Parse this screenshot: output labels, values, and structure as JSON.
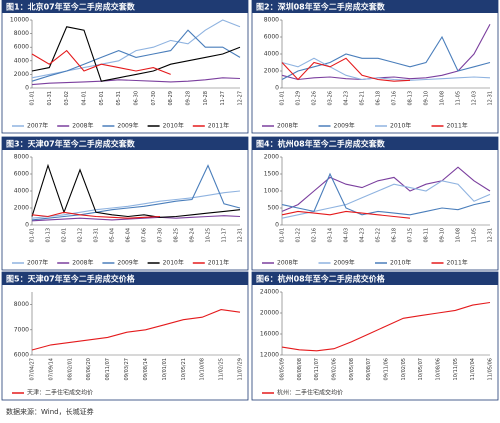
{
  "chart_data": [
    {
      "type": "line",
      "title": "图1：北京07年至今二手房成交套数",
      "categories": [
        "01-01",
        "01-31",
        "03-02",
        "04-01",
        "05-01",
        "05-31",
        "06-30",
        "07-30",
        "08-29",
        "09-28",
        "10-28",
        "11-27",
        "12-27"
      ],
      "ylim": [
        0,
        10000
      ],
      "yticks": [
        0,
        2000,
        4000,
        6000,
        8000,
        10000
      ],
      "grid": false,
      "series": [
        {
          "name": "2007年",
          "color": "#8fb3e0",
          "values": [
            1500,
            2000,
            2500,
            3000,
            3500,
            4000,
            5500,
            6000,
            7000,
            6500,
            8500,
            10000,
            9000
          ]
        },
        {
          "name": "2008年",
          "color": "#7b3f9e",
          "values": [
            500,
            700,
            800,
            900,
            1000,
            1200,
            1100,
            1000,
            900,
            1000,
            1200,
            1500,
            1400
          ]
        },
        {
          "name": "2009年",
          "color": "#4a7ebb",
          "values": [
            1000,
            1800,
            2500,
            3500,
            4500,
            5500,
            4500,
            5000,
            5500,
            8500,
            6000,
            6000,
            4500
          ]
        },
        {
          "name": "2010年",
          "color": "#000000",
          "values": [
            2500,
            3000,
            9000,
            8500,
            1000,
            1500,
            2000,
            2500,
            3500,
            4000,
            4500,
            5000,
            6000
          ]
        },
        {
          "name": "2011年",
          "color": "#e41a1c",
          "values": [
            5000,
            3500,
            5500,
            2500,
            3500,
            3000,
            2500,
            3000,
            2000,
            null,
            null,
            null,
            null
          ]
        }
      ]
    },
    {
      "type": "line",
      "title": "图2：深圳08年至今二手房成交套数",
      "categories": [
        "01-01",
        "01-29",
        "02-26",
        "03-26",
        "04-23",
        "05-21",
        "06-18",
        "07-16",
        "08-13",
        "09-10",
        "10-08",
        "11-05",
        "12-03",
        "12-31"
      ],
      "ylim": [
        0,
        8000
      ],
      "yticks": [
        0,
        2000,
        4000,
        6000,
        8000
      ],
      "grid": false,
      "series": [
        {
          "name": "2008年",
          "color": "#7b3f9e",
          "values": [
            1500,
            1000,
            1200,
            1300,
            1100,
            1000,
            1200,
            1300,
            1100,
            1200,
            1500,
            2000,
            4000,
            7500
          ]
        },
        {
          "name": "2009年",
          "color": "#4a7ebb",
          "values": [
            1000,
            2000,
            2500,
            3000,
            4000,
            3500,
            3500,
            3000,
            2500,
            3000,
            6000,
            2000,
            2500,
            3000
          ]
        },
        {
          "name": "2010年",
          "color": "#8fb3e0",
          "values": [
            3000,
            2500,
            3500,
            2500,
            1500,
            1000,
            1200,
            1000,
            900,
            1000,
            1100,
            1200,
            1300,
            1200
          ]
        },
        {
          "name": "2011年",
          "color": "#e41a1c",
          "values": [
            3000,
            1000,
            3000,
            2500,
            3500,
            1500,
            1000,
            800,
            900,
            null,
            null,
            null,
            null,
            null
          ]
        }
      ]
    },
    {
      "type": "line",
      "title": "图3：天津07年至今二手房成交套数",
      "categories": [
        "01-01",
        "01-13",
        "02-01",
        "02-12",
        "03-31",
        "05-04",
        "06-04",
        "07-06",
        "07-30",
        "08-25",
        "09-24",
        "10-25",
        "11-17",
        "12-31"
      ],
      "ylim": [
        0,
        8000
      ],
      "yticks": [
        0,
        2000,
        4000,
        6000,
        8000
      ],
      "grid": false,
      "series": [
        {
          "name": "2007年",
          "color": "#8fb3e0",
          "values": [
            800,
            1000,
            1200,
            1500,
            1800,
            2000,
            2200,
            2500,
            2800,
            3000,
            3200,
            3500,
            3800,
            4000
          ]
        },
        {
          "name": "2008年",
          "color": "#7b3f9e",
          "values": [
            500,
            600,
            700,
            800,
            700,
            600,
            700,
            800,
            900,
            800,
            900,
            1000,
            1100,
            1000
          ]
        },
        {
          "name": "2009年",
          "color": "#4a7ebb",
          "values": [
            600,
            800,
            1000,
            1200,
            1500,
            1800,
            2000,
            2200,
            2500,
            2800,
            3000,
            7000,
            2500,
            2000
          ]
        },
        {
          "name": "2010年",
          "color": "#000000",
          "values": [
            1000,
            7000,
            1500,
            6500,
            1500,
            1200,
            1000,
            1200,
            900,
            1000,
            1200,
            1400,
            1600,
            1800
          ]
        },
        {
          "name": "2011年",
          "color": "#e41a1c",
          "values": [
            1200,
            1000,
            1500,
            1200,
            1000,
            900,
            800,
            900,
            1000,
            null,
            null,
            null,
            null,
            null
          ]
        }
      ]
    },
    {
      "type": "line",
      "title": "图4：杭州08年至今二手房成交套数",
      "categories": [
        "01-01",
        "01-22",
        "02-16",
        "03-14",
        "04-03",
        "04-23",
        "05-22",
        "06-18",
        "07-15",
        "08-11",
        "09-10",
        "10-08",
        "11-05",
        "12-31"
      ],
      "ylim": [
        0,
        2000
      ],
      "yticks": [
        0,
        500,
        1000,
        1500,
        2000
      ],
      "grid": false,
      "series": [
        {
          "name": "2008年",
          "color": "#7b3f9e",
          "values": [
            400,
            600,
            1000,
            1400,
            1200,
            1100,
            1300,
            1400,
            1000,
            1200,
            1300,
            1700,
            1300,
            1000
          ]
        },
        {
          "name": "2009年",
          "color": "#8fb3e0",
          "values": [
            200,
            300,
            400,
            500,
            600,
            800,
            1000,
            1200,
            1100,
            1000,
            1300,
            1200,
            700,
            900
          ]
        },
        {
          "name": "2010年",
          "color": "#4a7ebb",
          "values": [
            600,
            500,
            400,
            1500,
            500,
            300,
            400,
            350,
            300,
            400,
            500,
            450,
            600,
            700
          ]
        },
        {
          "name": "2011年",
          "color": "#e41a1c",
          "values": [
            300,
            400,
            350,
            300,
            400,
            350,
            300,
            250,
            200,
            null,
            null,
            null,
            null,
            null
          ]
        }
      ]
    },
    {
      "type": "line",
      "title": "图5：天津07年至今二手房成交价格",
      "categories": [
        "07/04/27",
        "07/09/14",
        "08/02/01",
        "08/06/20",
        "08/11/07",
        "09/03/27",
        "09/08/14",
        "10/01/01",
        "10/05/21",
        "10/10/08",
        "11/02/25",
        "11/07/29"
      ],
      "ylim": [
        6000,
        8500
      ],
      "yticks": [
        6000,
        7000,
        8000
      ],
      "grid": false,
      "series": [
        {
          "name": "天津：二手住宅成交均价",
          "color": "#e41a1c",
          "values": [
            6200,
            6400,
            6500,
            6600,
            6700,
            6900,
            7000,
            7200,
            7400,
            7500,
            7800,
            7700
          ]
        }
      ]
    },
    {
      "type": "line",
      "title": "图6：杭州08年至今二手房成交价格",
      "categories": [
        "08/05/09",
        "08/08/08",
        "08/11/07",
        "09/02/06",
        "09/05/08",
        "09/08/07",
        "09/11/06",
        "10/02/05",
        "10/05/07",
        "10/08/06",
        "10/11/05",
        "11/02/04",
        "11/05/06"
      ],
      "ylim": [
        12000,
        24000
      ],
      "yticks": [
        12000,
        16000,
        20000,
        24000
      ],
      "grid": false,
      "series": [
        {
          "name": "杭州：二手住宅成交均价",
          "color": "#e41a1c",
          "values": [
            13500,
            13000,
            12800,
            13200,
            14500,
            16000,
            17500,
            19000,
            19500,
            20000,
            20500,
            21500,
            22000
          ]
        }
      ]
    }
  ],
  "source": "数据来源：Wind，长城证券"
}
